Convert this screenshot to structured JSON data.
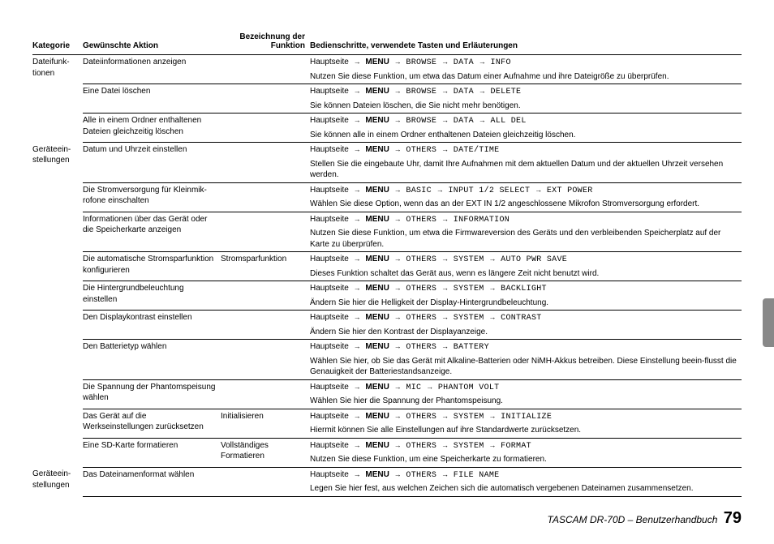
{
  "headers": {
    "kategorie": "Kategorie",
    "aktion": "Gewünschte Aktion",
    "funktion": "Bezeichnung der Funktion",
    "schritte": "Bedienschritte, verwendete Tasten und Erläuterungen"
  },
  "arrow": "→",
  "menu_prefix": "Hauptseite",
  "menu_label": "MENU",
  "rows": [
    {
      "cat": "Dateifunk-\ntionen",
      "sep": false,
      "action": "Dateiinformationen anzeigen",
      "func": "",
      "path": [
        "BROWSE",
        "DATA",
        "INFO"
      ],
      "desc": "Nutzen Sie diese Funktion, um etwa das Datum einer Aufnahme und ihre Dateigröße zu überprüfen."
    },
    {
      "cat": "",
      "sep": true,
      "action": "Eine Datei löschen",
      "func": "",
      "path": [
        "BROWSE",
        "DATA",
        "DELETE"
      ],
      "desc": "Sie können Dateien löschen, die Sie nicht mehr benötigen."
    },
    {
      "cat": "",
      "sep": true,
      "action": "Alle in einem Ordner enthaltenen Dateien gleichzeitig löschen",
      "func": "",
      "path": [
        "BROWSE",
        "DATA",
        "ALL DEL"
      ],
      "desc": "Sie können alle in einem Ordner enthaltenen Dateien gleichzeitig löschen."
    },
    {
      "cat": "Geräteein-\nstellungen",
      "sep": true,
      "action": "Datum und Uhrzeit einstellen",
      "func": "",
      "path": [
        "OTHERS",
        "DATE/TIME"
      ],
      "desc": "Stellen Sie die eingebaute Uhr, damit Ihre Aufnahmen mit dem aktuellen Datum und der aktuellen Uhrzeit versehen werden."
    },
    {
      "cat": "",
      "sep": true,
      "action": "Die Stromversorgung für Kleinmik-rofone einschalten",
      "func": "",
      "path": [
        "BASIC",
        "INPUT 1/2 SELECT",
        "EXT POWER"
      ],
      "desc": "Wählen Sie diese Option, wenn das an der EXT IN 1/2 angeschlossene Mikrofon Stromversorgung erfordert."
    },
    {
      "cat": "",
      "sep": true,
      "action": "Informationen über das Gerät oder die Speicherkarte anzeigen",
      "func": "",
      "path": [
        "OTHERS",
        "INFORMATION"
      ],
      "desc": "Nutzen Sie diese Funktion, um etwa die Firmwareversion des Geräts und den verbleibenden Speicherplatz auf der Karte zu überprüfen."
    },
    {
      "cat": "",
      "sep": true,
      "action": "Die automatische Stromsparfunktion konfigurieren",
      "func": "Stromsparfunktion",
      "path": [
        "OTHERS",
        "SYSTEM",
        "AUTO PWR SAVE"
      ],
      "desc": "Dieses Funktion schaltet das Gerät aus, wenn es längere Zeit nicht benutzt wird."
    },
    {
      "cat": "",
      "sep": true,
      "action": "Die Hintergrundbeleuchtung einstellen",
      "func": "",
      "path": [
        "OTHERS",
        "SYSTEM",
        "BACKLIGHT"
      ],
      "desc": "Ändern Sie hier die Helligkeit der Display-Hintergrundbeleuchtung."
    },
    {
      "cat": "",
      "sep": true,
      "action": "Den Displaykontrast einstellen",
      "func": "",
      "path": [
        "OTHERS",
        "SYSTEM",
        "CONTRAST"
      ],
      "desc": "Ändern Sie hier den Kontrast der Displayanzeige."
    },
    {
      "cat": "",
      "sep": true,
      "action": "Den Batterietyp wählen",
      "func": "",
      "path": [
        "OTHERS",
        "BATTERY"
      ],
      "desc": "Wählen Sie hier, ob Sie das Gerät mit Alkaline-Batterien oder NiMH-Akkus betreiben. Diese Einstellung beein-flusst die Genauigkeit der Batteriestandsanzeige."
    },
    {
      "cat": "",
      "sep": true,
      "action": "Die Spannung der Phantomspeisung wählen",
      "func": "",
      "path": [
        "MIC",
        "PHANTOM VOLT"
      ],
      "desc": "Wählen Sie hier die Spannung der Phantomspeisung."
    },
    {
      "cat": "",
      "sep": true,
      "action": "Das Gerät auf die Werkseinstellungen zurücksetzen",
      "func": "Initialisieren",
      "path": [
        "OTHERS",
        "SYSTEM",
        "INITIALIZE"
      ],
      "desc": "Hiermit können Sie alle Einstellungen auf ihre Standardwerte zurücksetzen."
    },
    {
      "cat": "",
      "sep": true,
      "action": "Eine SD-Karte formatieren",
      "func": "Vollständiges Formatieren",
      "path": [
        "OTHERS",
        "SYSTEM",
        "FORMAT"
      ],
      "desc": "Nutzen Sie diese Funktion, um eine Speicherkarte zu formatieren."
    },
    {
      "cat": "Geräteein-\nstellungen",
      "sep": true,
      "action": "Das Dateinamenformat wählen",
      "func": "",
      "path": [
        "OTHERS",
        "FILE NAME"
      ],
      "desc": "Legen Sie hier fest, aus welchen Zeichen sich die automatisch vergebenen Dateinamen zusammensetzen."
    }
  ],
  "last_sep": true,
  "footer": {
    "manual": "TASCAM DR-70D – Benutzerhandbuch",
    "page": "79"
  }
}
